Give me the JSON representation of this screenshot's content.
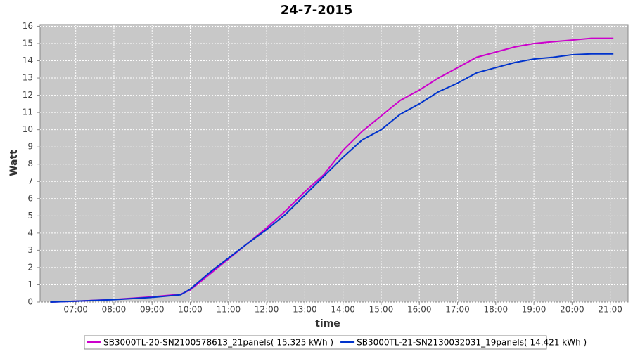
{
  "chart_data": {
    "type": "line",
    "title": "24-7-2015",
    "x_label": "time",
    "y_label": "Watt",
    "x": [
      "06:20",
      "07:00",
      "08:00",
      "09:00",
      "09:45",
      "10:00",
      "10:30",
      "11:00",
      "11:30",
      "12:00",
      "12:30",
      "13:00",
      "13:30",
      "14:00",
      "14:30",
      "15:00",
      "15:30",
      "16:00",
      "16:30",
      "17:00",
      "17:30",
      "18:00",
      "18:30",
      "19:00",
      "19:30",
      "20:00",
      "20:30",
      "21:05"
    ],
    "series": [
      {
        "name": "SB3000TL-20-SN2100578613_21panels( 15.325 kWh )",
        "color": "#cc00cc",
        "values": [
          0,
          0.05,
          0.15,
          0.3,
          0.45,
          0.7,
          1.6,
          2.5,
          3.4,
          4.3,
          5.3,
          6.4,
          7.4,
          8.8,
          9.9,
          10.8,
          11.7,
          12.3,
          13.0,
          13.6,
          14.2,
          14.5,
          14.8,
          15.0,
          15.1,
          15.2,
          15.3,
          15.3
        ]
      },
      {
        "name": "SB3000TL-21-SN2130032031_19panels( 14.421 kWh )",
        "color": "#0033cc",
        "values": [
          0,
          0.05,
          0.14,
          0.27,
          0.42,
          0.75,
          1.7,
          2.55,
          3.4,
          4.2,
          5.1,
          6.2,
          7.3,
          8.4,
          9.4,
          10.0,
          10.9,
          11.5,
          12.2,
          12.7,
          13.3,
          13.6,
          13.9,
          14.1,
          14.2,
          14.35,
          14.4,
          14.4
        ]
      }
    ],
    "xlim": [
      "06:04",
      "21:28"
    ],
    "xticks": [
      "07:00",
      "08:00",
      "09:00",
      "10:00",
      "11:00",
      "12:00",
      "13:00",
      "14:00",
      "15:00",
      "16:00",
      "17:00",
      "18:00",
      "19:00",
      "20:00",
      "21:00"
    ],
    "ylim": [
      0,
      16.1
    ],
    "yticks": [
      0,
      1,
      2,
      3,
      4,
      5,
      6,
      7,
      8,
      9,
      10,
      11,
      12,
      13,
      14,
      15,
      16
    ],
    "grid": true,
    "legend": "bottom"
  }
}
